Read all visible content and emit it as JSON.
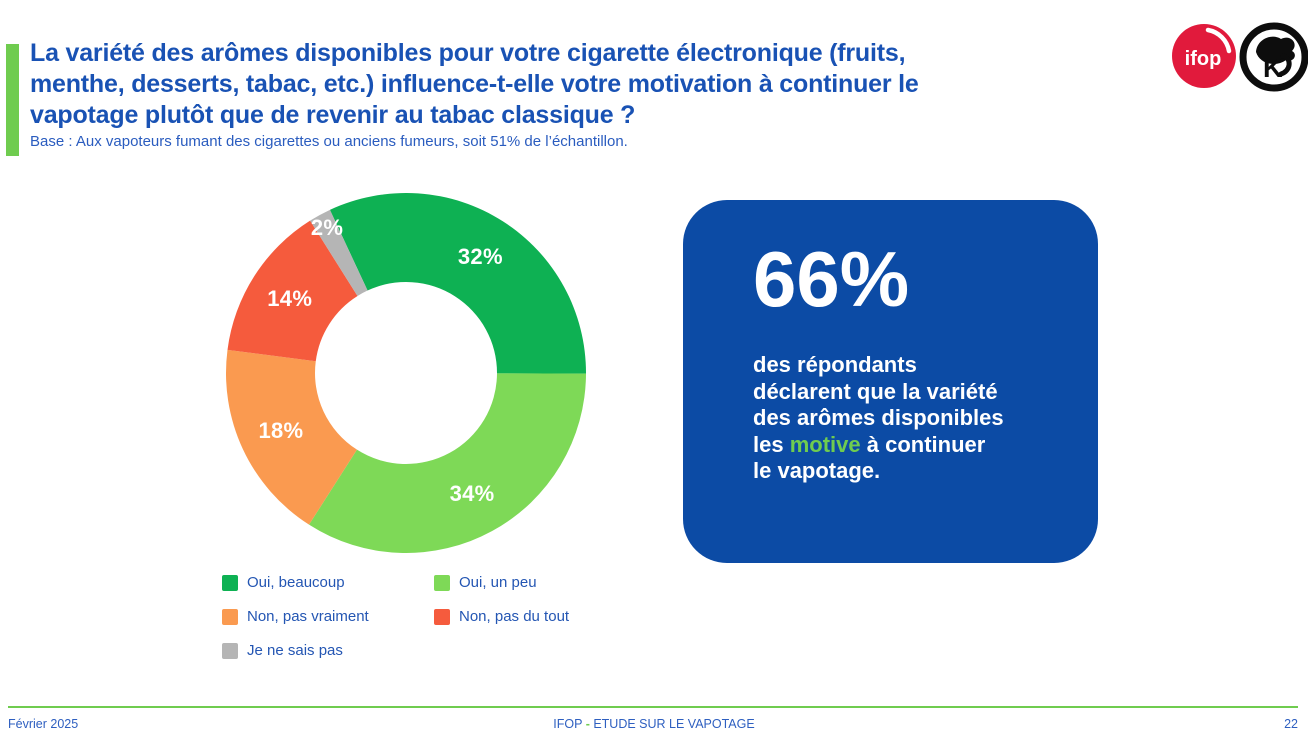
{
  "accent": {
    "green": "#6FCC4F",
    "title_blue": "#1952B4",
    "card_blue": "#0C4BA5",
    "footer_blue": "#2E5FC0"
  },
  "header": {
    "title": "La variété des arômes disponibles pour votre cigarette électronique (fruits,\nmenthe, desserts, tabac, etc.) influence-t-elle votre motivation à continuer le\nvapotage plutôt que de revenir au tabac classique ?",
    "base_note": "Base : Aux vapoteurs fumant des cigarettes ou anciens fumeurs, soit 51% de l’échantillon."
  },
  "logos": {
    "ifop_text": "ifop"
  },
  "chart_data": {
    "type": "pie",
    "subtype": "donut",
    "labels": [
      "Oui, beaucoup",
      "Oui, un peu",
      "Non, pas vraiment",
      "Non, pas du tout",
      "Je ne sais pas"
    ],
    "values": [
      32,
      34,
      18,
      14,
      2
    ],
    "colors": [
      "#0EB153",
      "#7ED957",
      "#FA9A50",
      "#F55B3D",
      "#B5B5B5"
    ],
    "value_suffix": "%",
    "start_angle_deg": -25,
    "outer_radius": 180,
    "inner_radius": 91,
    "label_radius": 138,
    "small_label_radius": 165,
    "small_label_threshold": 5,
    "label_color": "#ffffff",
    "legend_position": "bottom-left"
  },
  "stat_card": {
    "headline": "66%",
    "text_before": "des répondants\ndéclarent que la variété\ndes arômes disponibles\nles ",
    "highlight": "motive",
    "text_after": " à continuer\nle vapotage."
  },
  "footer": {
    "date": "Février 2025",
    "center_left": "IFOP ",
    "dash": "-",
    "center_right": " ETUDE SUR LE VAPOTAGE",
    "page": "22"
  }
}
